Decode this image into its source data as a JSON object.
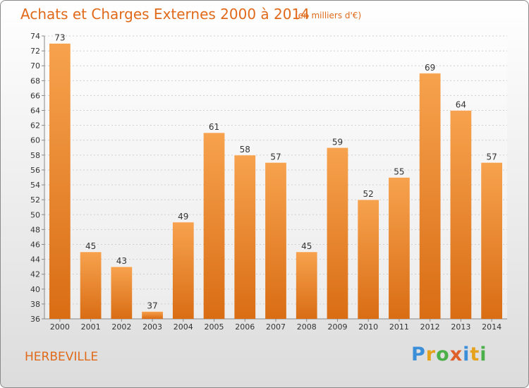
{
  "header": {
    "title": "Achats et Charges Externes 2000 à 2014",
    "subtitle": "(en milliers d'€)"
  },
  "footer": {
    "town": "HERBEVILLE",
    "logo_letters": [
      "P",
      "r",
      "o",
      "x",
      "i",
      "t",
      "i"
    ]
  },
  "colors": {
    "bar_light": "#f7a24e",
    "bar_dark": "#d96d14",
    "grid": "#cfcfcf",
    "text": "#333333",
    "title": "#e06a1a"
  },
  "chart_data": {
    "type": "bar",
    "title": "Achats et Charges Externes 2000 à 2014",
    "subtitle": "(en milliers d'€)",
    "xlabel": "",
    "ylabel": "",
    "categories": [
      "2000",
      "2001",
      "2002",
      "2003",
      "2004",
      "2005",
      "2006",
      "2007",
      "2008",
      "2009",
      "2010",
      "2011",
      "2012",
      "2013",
      "2014"
    ],
    "values": [
      73,
      45,
      43,
      37,
      49,
      61,
      58,
      57,
      45,
      59,
      52,
      55,
      69,
      64,
      57
    ],
    "ylim": [
      36,
      74
    ],
    "yticks": [
      36,
      38,
      40,
      42,
      44,
      46,
      48,
      50,
      52,
      54,
      56,
      58,
      60,
      62,
      64,
      66,
      68,
      70,
      72,
      74
    ],
    "grid": "horizontal dotted",
    "legend": "none"
  }
}
